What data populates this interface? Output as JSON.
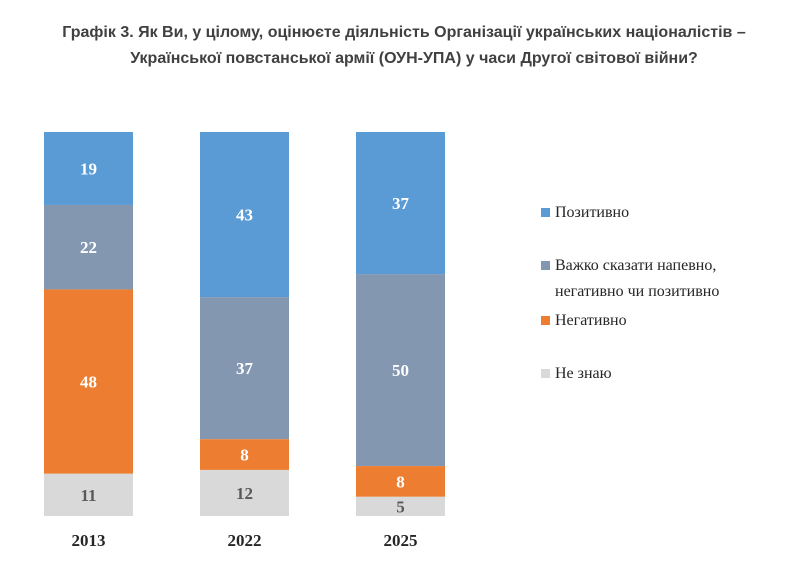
{
  "chart_data": {
    "type": "bar",
    "stacked": true,
    "orientation": "vertical",
    "title_line1": "Графік 3. Як Ви, у цілому, оцінюєте діяльність Організації українських націоналістів –",
    "title_line2": "Української повстанської армії (ОУН-УПА) у часи Другої світової війни?",
    "categories": [
      "2013",
      "2022",
      "2025"
    ],
    "ylim": [
      0,
      100
    ],
    "grid": false,
    "legend_position": "right",
    "series": [
      {
        "name": "Позитивно",
        "values": [
          19,
          43,
          37
        ],
        "color": "#5B9BD5",
        "label_color": "#ffffff"
      },
      {
        "name": "Важко сказати напевно, негативно чи позитивно",
        "legend_lines": [
          "Важко сказати напевно,",
          "негативно чи позитивно"
        ],
        "values": [
          22,
          37,
          50
        ],
        "color": "#8497B0",
        "label_color": "#ffffff"
      },
      {
        "name": "Негативно",
        "values": [
          48,
          8,
          8
        ],
        "color": "#ED7D31",
        "label_color": "#ffffff"
      },
      {
        "name": "Не знаю",
        "values": [
          11,
          12,
          5
        ],
        "color": "#D9D9D9",
        "label_color": "#595959"
      }
    ]
  }
}
